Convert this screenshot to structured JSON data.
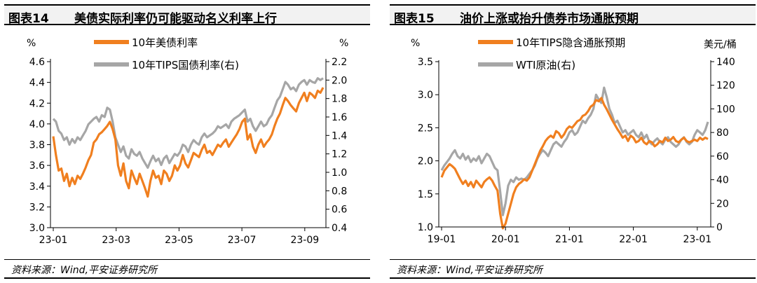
{
  "figures": [
    {
      "number": "图表14",
      "title": "美债实际利率仍可能驱动名义利率上行",
      "source": "资料来源：Wind,平安证券研究所"
    },
    {
      "number": "图表15",
      "title": "油价上涨或抬升债券市场通胀预期",
      "source": "资料来源：Wind,平安证券研究所"
    }
  ],
  "chart_data": [
    {
      "type": "line",
      "left_unit": "%",
      "right_unit": "%",
      "left_ylim": [
        3.0,
        4.6
      ],
      "right_ylim": [
        0.4,
        2.2
      ],
      "left_ticks": [
        "4.6",
        "4.4",
        "4.2",
        "4.0",
        "3.8",
        "3.6",
        "3.4",
        "3.2",
        "3.0"
      ],
      "right_ticks": [
        "2.2",
        "2.0",
        "1.8",
        "1.6",
        "1.4",
        "1.2",
        "1.0",
        "0.8",
        "0.6",
        "0.4"
      ],
      "x_ticks": [
        "23-01",
        "23-03",
        "23-05",
        "23-07",
        "23-09"
      ],
      "x_tick_pos": [
        0,
        0.233,
        0.466,
        0.699,
        0.932
      ],
      "legend_position": "top-center",
      "grid": false,
      "series": [
        {
          "name": "10年美债利率",
          "axis": "left",
          "color": "#f07f1f",
          "x": [
            0,
            0.01,
            0.02,
            0.03,
            0.04,
            0.05,
            0.06,
            0.07,
            0.08,
            0.09,
            0.1,
            0.11,
            0.12,
            0.13,
            0.14,
            0.15,
            0.16,
            0.17,
            0.18,
            0.19,
            0.2,
            0.21,
            0.22,
            0.23,
            0.24,
            0.25,
            0.26,
            0.27,
            0.28,
            0.29,
            0.3,
            0.31,
            0.32,
            0.33,
            0.34,
            0.35,
            0.36,
            0.37,
            0.38,
            0.39,
            0.4,
            0.41,
            0.42,
            0.43,
            0.44,
            0.45,
            0.46,
            0.47,
            0.48,
            0.49,
            0.5,
            0.51,
            0.52,
            0.53,
            0.54,
            0.55,
            0.56,
            0.57,
            0.58,
            0.59,
            0.6,
            0.61,
            0.62,
            0.63,
            0.64,
            0.65,
            0.66,
            0.67,
            0.68,
            0.69,
            0.7,
            0.71,
            0.72,
            0.73,
            0.74,
            0.75,
            0.76,
            0.77,
            0.78,
            0.79,
            0.8,
            0.81,
            0.82,
            0.83,
            0.84,
            0.85,
            0.86,
            0.87,
            0.88,
            0.89,
            0.9,
            0.91,
            0.92,
            0.93,
            0.94,
            0.95,
            0.96,
            0.97,
            0.98,
            0.99,
            1.0
          ],
          "values": [
            3.88,
            3.7,
            3.55,
            3.57,
            3.45,
            3.52,
            3.4,
            3.48,
            3.42,
            3.5,
            3.47,
            3.52,
            3.58,
            3.65,
            3.7,
            3.82,
            3.85,
            3.9,
            3.92,
            3.95,
            3.98,
            4.02,
            3.95,
            3.85,
            3.6,
            3.5,
            3.62,
            3.45,
            3.38,
            3.55,
            3.48,
            3.42,
            3.52,
            3.45,
            3.38,
            3.3,
            3.45,
            3.55,
            3.48,
            3.5,
            3.42,
            3.55,
            3.52,
            3.45,
            3.5,
            3.6,
            3.55,
            3.6,
            3.7,
            3.62,
            3.58,
            3.65,
            3.72,
            3.7,
            3.68,
            3.75,
            3.8,
            3.72,
            3.74,
            3.7,
            3.75,
            3.8,
            3.78,
            3.82,
            3.85,
            3.78,
            3.82,
            3.86,
            3.9,
            3.95,
            4.02,
            4.05,
            3.85,
            3.9,
            3.78,
            3.72,
            3.8,
            3.85,
            3.78,
            3.82,
            3.85,
            3.9,
            3.98,
            4.05,
            4.1,
            4.18,
            4.25,
            4.22,
            4.18,
            4.15,
            4.12,
            4.2,
            4.25,
            4.3,
            4.22,
            4.3,
            4.28,
            4.25,
            4.32,
            4.3,
            4.35
          ]
        },
        {
          "name": "10年TIPS国债利率(右)",
          "axis": "right",
          "color": "#a6a6a6",
          "x": [
            0,
            0.01,
            0.02,
            0.03,
            0.04,
            0.05,
            0.06,
            0.07,
            0.08,
            0.09,
            0.1,
            0.11,
            0.12,
            0.13,
            0.14,
            0.15,
            0.16,
            0.17,
            0.18,
            0.19,
            0.2,
            0.21,
            0.22,
            0.23,
            0.24,
            0.25,
            0.26,
            0.27,
            0.28,
            0.29,
            0.3,
            0.31,
            0.32,
            0.33,
            0.34,
            0.35,
            0.36,
            0.37,
            0.38,
            0.39,
            0.4,
            0.41,
            0.42,
            0.43,
            0.44,
            0.45,
            0.46,
            0.47,
            0.48,
            0.49,
            0.5,
            0.51,
            0.52,
            0.53,
            0.54,
            0.55,
            0.56,
            0.57,
            0.58,
            0.59,
            0.6,
            0.61,
            0.62,
            0.63,
            0.64,
            0.65,
            0.66,
            0.67,
            0.68,
            0.69,
            0.7,
            0.71,
            0.72,
            0.73,
            0.74,
            0.75,
            0.76,
            0.77,
            0.78,
            0.79,
            0.8,
            0.81,
            0.82,
            0.83,
            0.84,
            0.85,
            0.86,
            0.87,
            0.88,
            0.89,
            0.9,
            0.91,
            0.92,
            0.93,
            0.94,
            0.95,
            0.96,
            0.97,
            0.98,
            0.99,
            1.0
          ],
          "values": [
            1.58,
            1.55,
            1.45,
            1.42,
            1.35,
            1.38,
            1.3,
            1.36,
            1.32,
            1.38,
            1.35,
            1.4,
            1.45,
            1.52,
            1.55,
            1.58,
            1.6,
            1.55,
            1.62,
            1.6,
            1.7,
            1.68,
            1.55,
            1.38,
            1.3,
            1.22,
            1.28,
            1.18,
            1.15,
            1.25,
            1.2,
            1.18,
            1.22,
            1.15,
            1.1,
            1.05,
            1.12,
            1.18,
            1.12,
            1.15,
            1.08,
            1.15,
            1.18,
            1.1,
            1.15,
            1.2,
            1.18,
            1.22,
            1.3,
            1.28,
            1.22,
            1.3,
            1.35,
            1.32,
            1.3,
            1.38,
            1.42,
            1.38,
            1.4,
            1.42,
            1.45,
            1.5,
            1.48,
            1.5,
            1.52,
            1.48,
            1.55,
            1.58,
            1.6,
            1.62,
            1.65,
            1.68,
            1.55,
            1.58,
            1.5,
            1.45,
            1.5,
            1.55,
            1.5,
            1.52,
            1.58,
            1.62,
            1.7,
            1.78,
            1.82,
            1.9,
            1.98,
            1.95,
            1.9,
            1.92,
            1.88,
            1.95,
            1.98,
            2.0,
            1.95,
            2.0,
            1.98,
            1.97,
            2.02,
            2.0,
            2.02
          ]
        }
      ]
    },
    {
      "type": "line",
      "left_unit": "%",
      "right_unit": "美元/桶",
      "left_ylim": [
        1.0,
        3.5
      ],
      "right_ylim": [
        0,
        140
      ],
      "left_ticks": [
        "3.5",
        "3.0",
        "2.5",
        "2.0",
        "1.5",
        "1.0"
      ],
      "right_ticks": [
        "140",
        "120",
        "100",
        "80",
        "60",
        "40",
        "20",
        "0"
      ],
      "x_ticks": [
        "19-01",
        "20-01",
        "21-01",
        "22-01",
        "23-01"
      ],
      "x_tick_pos": [
        0,
        0.24,
        0.48,
        0.72,
        0.96
      ],
      "legend_position": "top-center",
      "grid": false,
      "series": [
        {
          "name": "10年TIPS隐含通胀预期",
          "axis": "left",
          "color": "#f07f1f",
          "x": [
            0,
            0.01,
            0.02,
            0.03,
            0.04,
            0.05,
            0.06,
            0.07,
            0.08,
            0.09,
            0.1,
            0.11,
            0.12,
            0.13,
            0.14,
            0.15,
            0.16,
            0.17,
            0.18,
            0.19,
            0.2,
            0.21,
            0.22,
            0.23,
            0.24,
            0.25,
            0.26,
            0.27,
            0.28,
            0.29,
            0.3,
            0.31,
            0.32,
            0.33,
            0.34,
            0.35,
            0.36,
            0.37,
            0.38,
            0.39,
            0.4,
            0.41,
            0.42,
            0.43,
            0.44,
            0.45,
            0.46,
            0.47,
            0.48,
            0.49,
            0.5,
            0.51,
            0.52,
            0.53,
            0.54,
            0.55,
            0.56,
            0.57,
            0.58,
            0.59,
            0.6,
            0.61,
            0.62,
            0.63,
            0.64,
            0.65,
            0.66,
            0.67,
            0.68,
            0.69,
            0.7,
            0.71,
            0.72,
            0.73,
            0.74,
            0.75,
            0.76,
            0.77,
            0.78,
            0.79,
            0.8,
            0.81,
            0.82,
            0.83,
            0.84,
            0.85,
            0.86,
            0.87,
            0.88,
            0.89,
            0.9,
            0.91,
            0.92,
            0.93,
            0.94,
            0.95,
            0.96,
            0.97,
            0.98,
            0.99,
            1.0
          ],
          "values": [
            1.75,
            1.85,
            1.9,
            1.95,
            1.92,
            1.88,
            1.8,
            1.72,
            1.65,
            1.7,
            1.62,
            1.68,
            1.6,
            1.7,
            1.65,
            1.6,
            1.68,
            1.72,
            1.75,
            1.7,
            1.62,
            1.55,
            1.2,
            0.98,
            1.05,
            1.2,
            1.35,
            1.5,
            1.6,
            1.65,
            1.68,
            1.72,
            1.7,
            1.75,
            1.85,
            1.95,
            2.05,
            2.15,
            2.22,
            2.3,
            2.35,
            2.38,
            2.35,
            2.45,
            2.42,
            2.35,
            2.4,
            2.48,
            2.52,
            2.5,
            2.55,
            2.6,
            2.62,
            2.68,
            2.7,
            2.75,
            2.82,
            2.85,
            2.92,
            2.9,
            2.95,
            2.85,
            2.78,
            2.7,
            2.62,
            2.55,
            2.48,
            2.42,
            2.35,
            2.38,
            2.3,
            2.38,
            2.35,
            2.28,
            2.3,
            2.35,
            2.28,
            2.25,
            2.3,
            2.28,
            2.22,
            2.25,
            2.3,
            2.28,
            2.35,
            2.3,
            2.32,
            2.36,
            2.3,
            2.28,
            2.32,
            2.35,
            2.3,
            2.28,
            2.3,
            2.32,
            2.3,
            2.35,
            2.32,
            2.35,
            2.33
          ]
        },
        {
          "name": "WTI原油(右)",
          "axis": "right",
          "color": "#a6a6a6",
          "x": [
            0,
            0.01,
            0.02,
            0.03,
            0.04,
            0.05,
            0.06,
            0.07,
            0.08,
            0.09,
            0.1,
            0.11,
            0.12,
            0.13,
            0.14,
            0.15,
            0.16,
            0.17,
            0.18,
            0.19,
            0.2,
            0.21,
            0.22,
            0.23,
            0.24,
            0.25,
            0.26,
            0.27,
            0.28,
            0.29,
            0.3,
            0.31,
            0.32,
            0.33,
            0.34,
            0.35,
            0.36,
            0.37,
            0.38,
            0.39,
            0.4,
            0.41,
            0.42,
            0.43,
            0.44,
            0.45,
            0.46,
            0.47,
            0.48,
            0.49,
            0.5,
            0.51,
            0.52,
            0.53,
            0.54,
            0.55,
            0.56,
            0.57,
            0.58,
            0.59,
            0.6,
            0.61,
            0.62,
            0.63,
            0.64,
            0.65,
            0.66,
            0.67,
            0.68,
            0.69,
            0.7,
            0.71,
            0.72,
            0.73,
            0.74,
            0.75,
            0.76,
            0.77,
            0.78,
            0.79,
            0.8,
            0.81,
            0.82,
            0.83,
            0.84,
            0.85,
            0.86,
            0.87,
            0.88,
            0.89,
            0.9,
            0.91,
            0.92,
            0.93,
            0.94,
            0.95,
            0.96,
            0.97,
            0.98,
            0.99,
            1.0
          ],
          "values": [
            48,
            52,
            55,
            58,
            62,
            65,
            60,
            58,
            62,
            57,
            60,
            55,
            58,
            56,
            60,
            54,
            58,
            62,
            60,
            55,
            50,
            48,
            30,
            10,
            20,
            35,
            40,
            38,
            42,
            40,
            41,
            40,
            42,
            45,
            48,
            52,
            58,
            62,
            65,
            63,
            60,
            65,
            70,
            72,
            70,
            68,
            72,
            75,
            80,
            82,
            78,
            80,
            85,
            90,
            88,
            92,
            95,
            100,
            112,
            108,
            105,
            118,
            110,
            100,
            95,
            88,
            90,
            85,
            80,
            82,
            78,
            80,
            82,
            78,
            76,
            80,
            75,
            78,
            72,
            70,
            73,
            75,
            72,
            70,
            74,
            76,
            72,
            70,
            68,
            70,
            74,
            76,
            72,
            70,
            72,
            78,
            82,
            80,
            78,
            82,
            89
          ]
        }
      ]
    }
  ]
}
